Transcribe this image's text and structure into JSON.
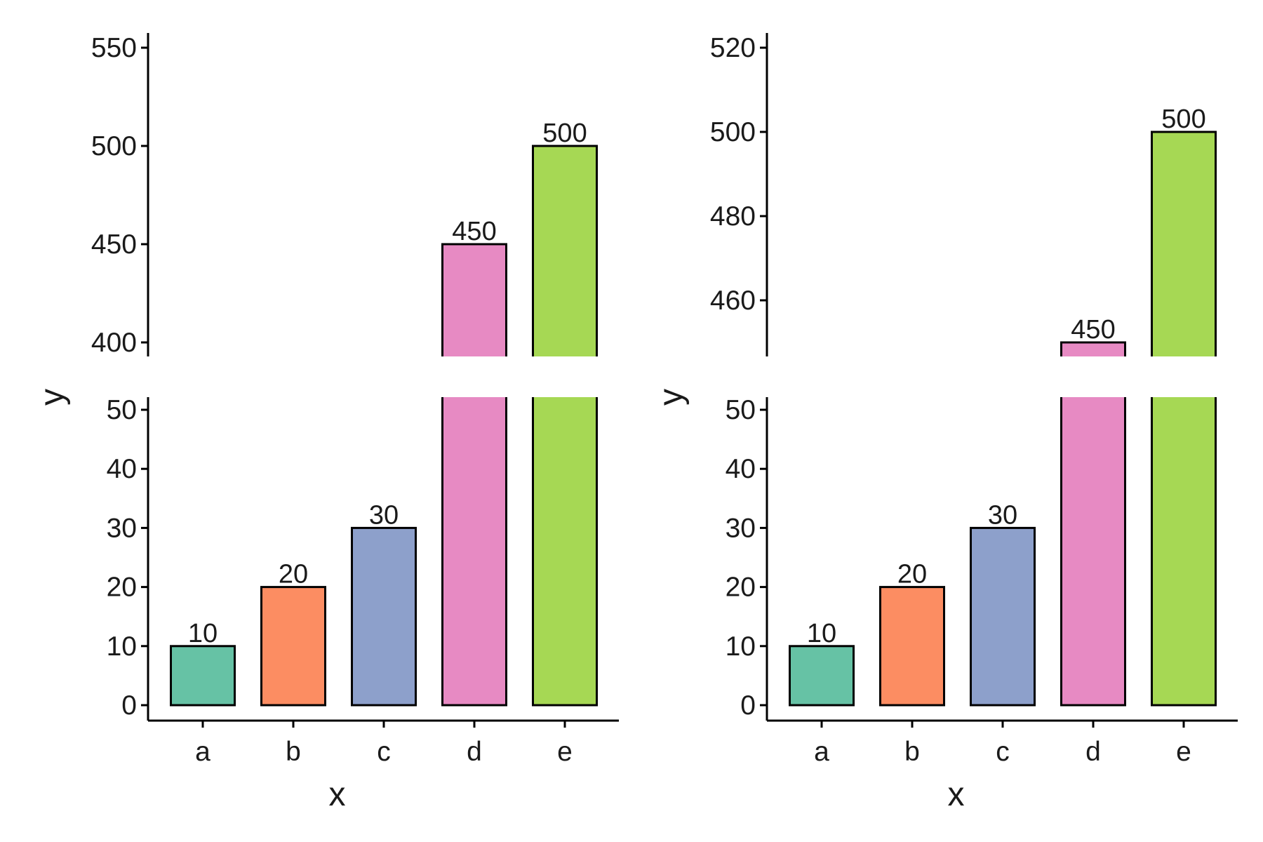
{
  "chart_data": [
    {
      "type": "bar",
      "panel": "left",
      "categories": [
        "a",
        "b",
        "c",
        "d",
        "e"
      ],
      "values": [
        10,
        20,
        30,
        450,
        500
      ],
      "data_labels": [
        "10",
        "20",
        "30",
        "450",
        "500"
      ],
      "bar_colors": [
        "#66C2A5",
        "#FC8D62",
        "#8DA0CB",
        "#E78AC3",
        "#A6D854"
      ],
      "xlabel": "x",
      "ylabel": "y",
      "broken_y_axis": true,
      "segments": [
        {
          "ylim": [
            0,
            52
          ],
          "ticks": [
            "0",
            "10",
            "20",
            "30",
            "40",
            "50"
          ]
        },
        {
          "ylim": [
            394,
            557
          ],
          "ticks": [
            "400",
            "450",
            "500",
            "550"
          ]
        }
      ],
      "grid": false,
      "legend": "none"
    },
    {
      "type": "bar",
      "panel": "right",
      "categories": [
        "a",
        "b",
        "c",
        "d",
        "e"
      ],
      "values": [
        10,
        20,
        30,
        450,
        500
      ],
      "data_labels": [
        "10",
        "20",
        "30",
        "450",
        "500"
      ],
      "bar_colors": [
        "#66C2A5",
        "#FC8D62",
        "#8DA0CB",
        "#E78AC3",
        "#A6D854"
      ],
      "xlabel": "x",
      "ylabel": "y",
      "broken_y_axis": true,
      "segments": [
        {
          "ylim": [
            0,
            52
          ],
          "ticks": [
            "0",
            "10",
            "20",
            "30",
            "40",
            "50"
          ]
        },
        {
          "ylim": [
            447,
            524
          ],
          "ticks": [
            "460",
            "480",
            "500",
            "520"
          ]
        }
      ],
      "grid": false,
      "legend": "none"
    }
  ]
}
